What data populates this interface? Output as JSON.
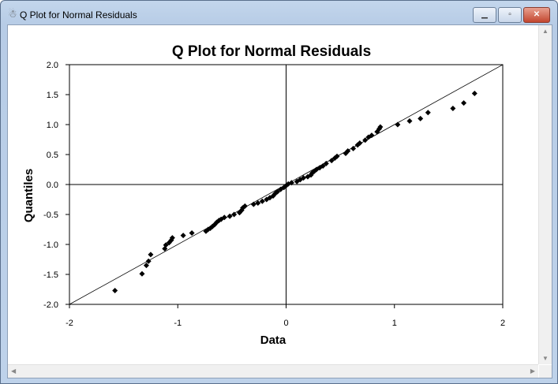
{
  "window": {
    "title": "Q Plot for Normal Residuals",
    "minimize": "▁",
    "maximize": "▫",
    "close": "✕"
  },
  "chart_data": {
    "type": "scatter",
    "title": "Q Plot for Normal Residuals",
    "xlabel": "Data",
    "ylabel": "Quantiles",
    "xlim": [
      -2,
      2
    ],
    "ylim": [
      -2,
      2
    ],
    "xticks": [
      "-2",
      "-1",
      "0",
      "1",
      "2"
    ],
    "yticks": [
      "2.0",
      "1.5",
      "1.0",
      "0.5",
      "0.0",
      "-0.5",
      "-1.0",
      "-1.5",
      "-2.0"
    ],
    "reference_line": [
      [
        -2,
        -2
      ],
      [
        2,
        2
      ]
    ],
    "points": [
      [
        -1.58,
        -1.77
      ],
      [
        -1.33,
        -1.49
      ],
      [
        -1.29,
        -1.35
      ],
      [
        -1.27,
        -1.28
      ],
      [
        -1.25,
        -1.17
      ],
      [
        -1.12,
        -1.07
      ],
      [
        -1.11,
        -1.01
      ],
      [
        -1.08,
        -0.97
      ],
      [
        -1.06,
        -0.93
      ],
      [
        -1.05,
        -0.89
      ],
      [
        -0.95,
        -0.85
      ],
      [
        -0.87,
        -0.81
      ],
      [
        -0.74,
        -0.78
      ],
      [
        -0.72,
        -0.75
      ],
      [
        -0.7,
        -0.73
      ],
      [
        -0.68,
        -0.7
      ],
      [
        -0.66,
        -0.67
      ],
      [
        -0.64,
        -0.63
      ],
      [
        -0.62,
        -0.6
      ],
      [
        -0.6,
        -0.58
      ],
      [
        -0.57,
        -0.55
      ],
      [
        -0.52,
        -0.53
      ],
      [
        -0.48,
        -0.5
      ],
      [
        -0.43,
        -0.47
      ],
      [
        -0.41,
        -0.43
      ],
      [
        -0.4,
        -0.39
      ],
      [
        -0.38,
        -0.36
      ],
      [
        -0.3,
        -0.33
      ],
      [
        -0.26,
        -0.31
      ],
      [
        -0.22,
        -0.28
      ],
      [
        -0.18,
        -0.25
      ],
      [
        -0.15,
        -0.22
      ],
      [
        -0.12,
        -0.19
      ],
      [
        -0.1,
        -0.15
      ],
      [
        -0.08,
        -0.12
      ],
      [
        -0.05,
        -0.08
      ],
      [
        -0.02,
        -0.05
      ],
      [
        0,
        -0.02
      ],
      [
        0.02,
        0.01
      ],
      [
        0.05,
        0.03
      ],
      [
        0.1,
        0.05
      ],
      [
        0.13,
        0.08
      ],
      [
        0.16,
        0.11
      ],
      [
        0.2,
        0.13
      ],
      [
        0.23,
        0.16
      ],
      [
        0.24,
        0.19
      ],
      [
        0.26,
        0.22
      ],
      [
        0.28,
        0.25
      ],
      [
        0.31,
        0.28
      ],
      [
        0.34,
        0.31
      ],
      [
        0.37,
        0.35
      ],
      [
        0.42,
        0.4
      ],
      [
        0.45,
        0.44
      ],
      [
        0.47,
        0.47
      ],
      [
        0.55,
        0.52
      ],
      [
        0.57,
        0.56
      ],
      [
        0.62,
        0.6
      ],
      [
        0.66,
        0.66
      ],
      [
        0.68,
        0.69
      ],
      [
        0.73,
        0.74
      ],
      [
        0.76,
        0.79
      ],
      [
        0.79,
        0.82
      ],
      [
        0.84,
        0.88
      ],
      [
        0.86,
        0.93
      ],
      [
        0.87,
        0.96
      ],
      [
        1.03,
        1.0
      ],
      [
        1.14,
        1.06
      ],
      [
        1.24,
        1.1
      ],
      [
        1.31,
        1.2
      ],
      [
        1.54,
        1.27
      ],
      [
        1.64,
        1.36
      ],
      [
        1.74,
        1.52
      ]
    ]
  }
}
